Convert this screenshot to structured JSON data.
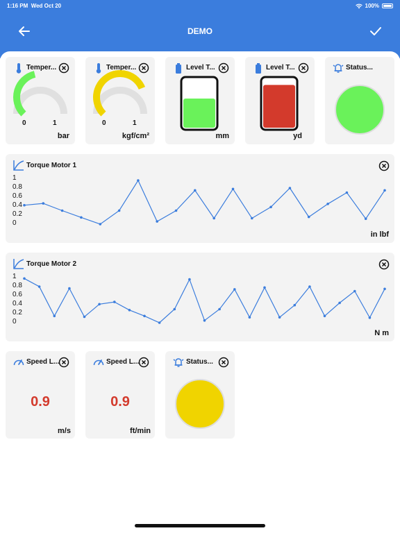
{
  "status_bar": {
    "time": "1:16 PM",
    "date": "Wed Oct 20",
    "battery": "100%"
  },
  "header": {
    "title": "DEMO"
  },
  "colors": {
    "header": "#3b7ddd",
    "green": "#6af25a",
    "yellow": "#f0d400",
    "red": "#d33a2c",
    "line": "#3b7ddd"
  },
  "gauges": [
    {
      "title": "Temper...",
      "icon": "thermometer-icon",
      "min": "0",
      "max": "1",
      "unit": "bar",
      "value": 0.45,
      "color": "#6af25a"
    },
    {
      "title": "Temper...",
      "icon": "thermometer-icon",
      "min": "0",
      "max": "1",
      "unit": "kgf/cm²",
      "value": 0.75,
      "color": "#f0d400"
    }
  ],
  "levels": [
    {
      "title": "Level T...",
      "icon": "battery-icon",
      "unit": "mm",
      "fill": 0.6,
      "color": "#6af25a"
    },
    {
      "title": "Level T...",
      "icon": "battery-icon",
      "unit": "yd",
      "fill": 0.88,
      "color": "#d33a2c"
    }
  ],
  "status_top": {
    "title": "Status...",
    "icon": "alarm-bell-icon",
    "color": "#6af25a"
  },
  "chart_data": [
    {
      "type": "line",
      "title": "Torque Motor 1",
      "unit": "in lbf",
      "ylim": [
        0,
        1
      ],
      "y_ticks": [
        "1",
        "0.8",
        "0.6",
        "0.4",
        "0.2",
        "0"
      ],
      "values": [
        0.42,
        0.46,
        0.3,
        0.15,
        0.0,
        0.3,
        0.97,
        0.06,
        0.3,
        0.75,
        0.13,
        0.78,
        0.13,
        0.38,
        0.8,
        0.16,
        0.45,
        0.7,
        0.12,
        0.75
      ]
    },
    {
      "type": "line",
      "title": "Torque Motor 2",
      "unit": "N m",
      "ylim": [
        0,
        1
      ],
      "y_ticks": [
        "1",
        "0.8",
        "0.6",
        "0.4",
        "0.2",
        "0"
      ],
      "values": [
        0.98,
        0.8,
        0.15,
        0.76,
        0.13,
        0.41,
        0.46,
        0.28,
        0.15,
        0.0,
        0.3,
        0.96,
        0.05,
        0.3,
        0.74,
        0.12,
        0.78,
        0.12,
        0.39,
        0.8,
        0.15,
        0.44,
        0.7,
        0.11,
        0.75
      ]
    }
  ],
  "speeds": [
    {
      "title": "Speed L...",
      "icon": "speedometer-icon",
      "value": "0.9",
      "unit": "m/s"
    },
    {
      "title": "Speed L...",
      "icon": "speedometer-icon",
      "value": "0.9",
      "unit": "ft/min"
    }
  ],
  "status_bottom": {
    "title": "Status...",
    "icon": "alarm-bell-icon",
    "color": "#f0d400"
  }
}
